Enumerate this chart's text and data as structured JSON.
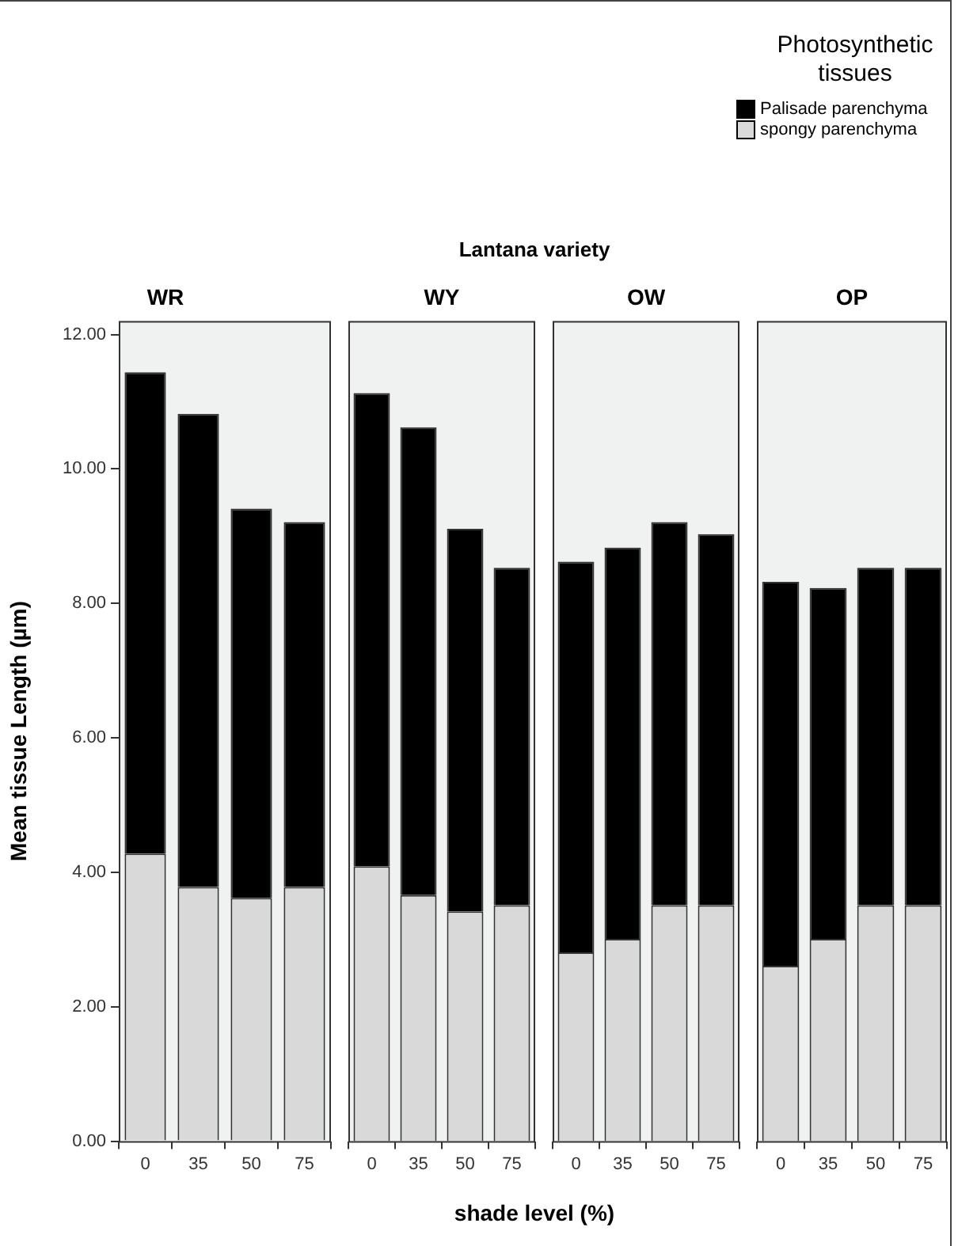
{
  "chart_data": [
    {
      "type": "bar",
      "stacked": true,
      "title": "WR",
      "ylabel": "Mean tissue Length (µm)",
      "xlabel": "shade level (%)",
      "annotations": [
        "Lantana variety"
      ],
      "legend": "top right",
      "legend_title": "Photosynthetic tissues",
      "categories": [
        "0",
        "35",
        "50",
        "75"
      ],
      "ylim": [
        0,
        12.2
      ],
      "yticks": [
        {
          "value": 0,
          "label": "0.00"
        },
        {
          "value": 2,
          "label": "2.00"
        },
        {
          "value": 4,
          "label": "4.00"
        },
        {
          "value": 6,
          "label": "6.00"
        },
        {
          "value": 8,
          "label": "8.00"
        },
        {
          "value": 10,
          "label": "10.00"
        },
        {
          "value": 12,
          "label": "12.00"
        }
      ],
      "series": [
        {
          "name": "spongy parenchyma",
          "color": "#d9d9d9",
          "values": [
            4.28,
            3.78,
            3.62,
            3.78
          ]
        },
        {
          "name": "Palisade parenchyma",
          "color": "#000000",
          "values": [
            7.16,
            7.04,
            5.79,
            5.43
          ]
        }
      ]
    },
    {
      "type": "bar",
      "stacked": true,
      "title": "WY",
      "tick_labels": "x",
      "categories": [
        "0",
        "35",
        "50",
        "75"
      ],
      "ylim": [
        0,
        12.2
      ],
      "series": [
        {
          "color": "#d9d9d9",
          "values": [
            4.09,
            3.66,
            3.42,
            3.51
          ]
        },
        {
          "color": "#000000",
          "values": [
            7.04,
            6.96,
            5.69,
            5.02
          ]
        }
      ]
    },
    {
      "type": "bar",
      "stacked": true,
      "title": "OW",
      "tick_labels": "x",
      "categories": [
        "0",
        "35",
        "50",
        "75"
      ],
      "ylim": [
        0,
        12.2
      ],
      "series": [
        {
          "color": "#d9d9d9",
          "values": [
            2.81,
            3.01,
            3.51,
            3.51
          ]
        },
        {
          "color": "#000000",
          "values": [
            5.81,
            5.82,
            5.7,
            5.52
          ]
        }
      ]
    },
    {
      "type": "bar",
      "stacked": true,
      "title": "OP",
      "tick_labels": "x",
      "categories": [
        "0",
        "35",
        "50",
        "75"
      ],
      "ylim": [
        0,
        12.2
      ],
      "series": [
        {
          "color": "#d9d9d9",
          "values": [
            2.61,
            3.01,
            3.51,
            3.51
          ]
        },
        {
          "color": "#000000",
          "values": [
            5.71,
            5.22,
            5.02,
            5.02
          ]
        }
      ]
    }
  ]
}
